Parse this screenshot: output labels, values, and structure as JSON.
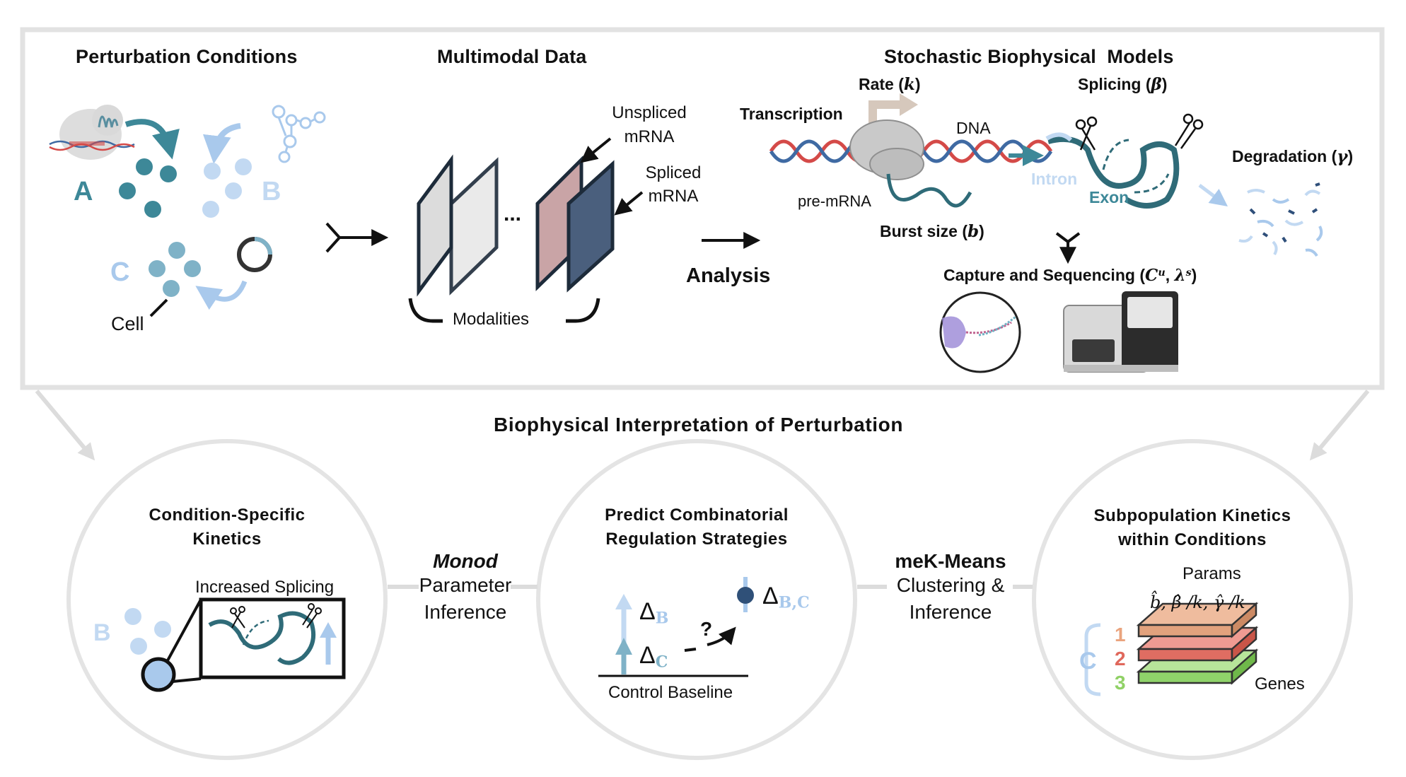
{
  "top_panel": {
    "perturbation": {
      "title": "Perturbation Conditions",
      "cond_a": "A",
      "cond_b": "B",
      "cond_c": "C",
      "cell_label": "Cell"
    },
    "multimodal": {
      "title": "Multimodal Data",
      "unspliced": [
        "Unspliced",
        "mRNA"
      ],
      "spliced": [
        "Spliced",
        "mRNA"
      ],
      "ellipsis": "...",
      "modalities": "Modalities"
    },
    "analysis_label": "Analysis",
    "models": {
      "title": "Stochastic Biophysical  Models",
      "rate_label": "Rate",
      "rate_symbol": "k",
      "splicing_label": "Splicing",
      "splicing_symbol": "β",
      "transcription": "Transcription",
      "dna": "DNA",
      "pre_mrna": "pre-mRNA",
      "burst_label": "Burst size",
      "burst_symbol": "b",
      "intron": "Intron",
      "exon": "Exon",
      "degradation_label": "Degradation",
      "degradation_symbol": "γ",
      "capture_label": "Capture and Sequencing",
      "capture_c": "C",
      "capture_c_sup": "u",
      "capture_lambda": "λ",
      "capture_lambda_sup": "s"
    }
  },
  "bottom": {
    "title": "Biophysical Interpretation of Perturbation",
    "circle_1": {
      "title": [
        "Condition-Specific",
        "Kinetics"
      ],
      "inset_label": "Increased Splicing",
      "cond_label": "B"
    },
    "link_1": {
      "method": "Monod",
      "lines": [
        "Parameter",
        "Inference"
      ]
    },
    "circle_2": {
      "title": [
        "Predict Combinatorial",
        "Regulation Strategies"
      ],
      "delta": "Δ",
      "delta_b_sub": "B",
      "delta_c_sub": "C",
      "delta_bc_sub": "B,C",
      "question": "?",
      "baseline": "Control Baseline"
    },
    "link_2": {
      "method": "meK-Means",
      "lines": [
        "Clustering &",
        "Inference"
      ]
    },
    "circle_3": {
      "title": [
        "Subpopulation Kinetics",
        "within Conditions"
      ],
      "params": "Params",
      "formula": "b̂, β̂ /k, γ̂ /k",
      "cluster_letter": "C",
      "clusters": [
        "1",
        "2",
        "3"
      ],
      "genes": "Genes"
    }
  },
  "colors": {
    "teal_dark": "#2f6b78",
    "teal_mid": "#3d8898",
    "light_blue": "#a9c9ec",
    "pale_blue": "#c2d9f2",
    "frame_gray": "#e2e2e2",
    "circle_gray": "#e4e4e4",
    "panel_light": "#dcdcdc",
    "panel_pink": "#c9a4a6",
    "panel_navy": "#4a5f7d",
    "dna_red": "#d44a48",
    "dna_blue": "#3f6aa3",
    "layer_orange": "#e2a27d",
    "layer_red": "#df6d62",
    "layer_green": "#8fd36a",
    "num_orange": "#eaa47e",
    "num_red": "#e0685c",
    "num_green": "#90d166"
  }
}
